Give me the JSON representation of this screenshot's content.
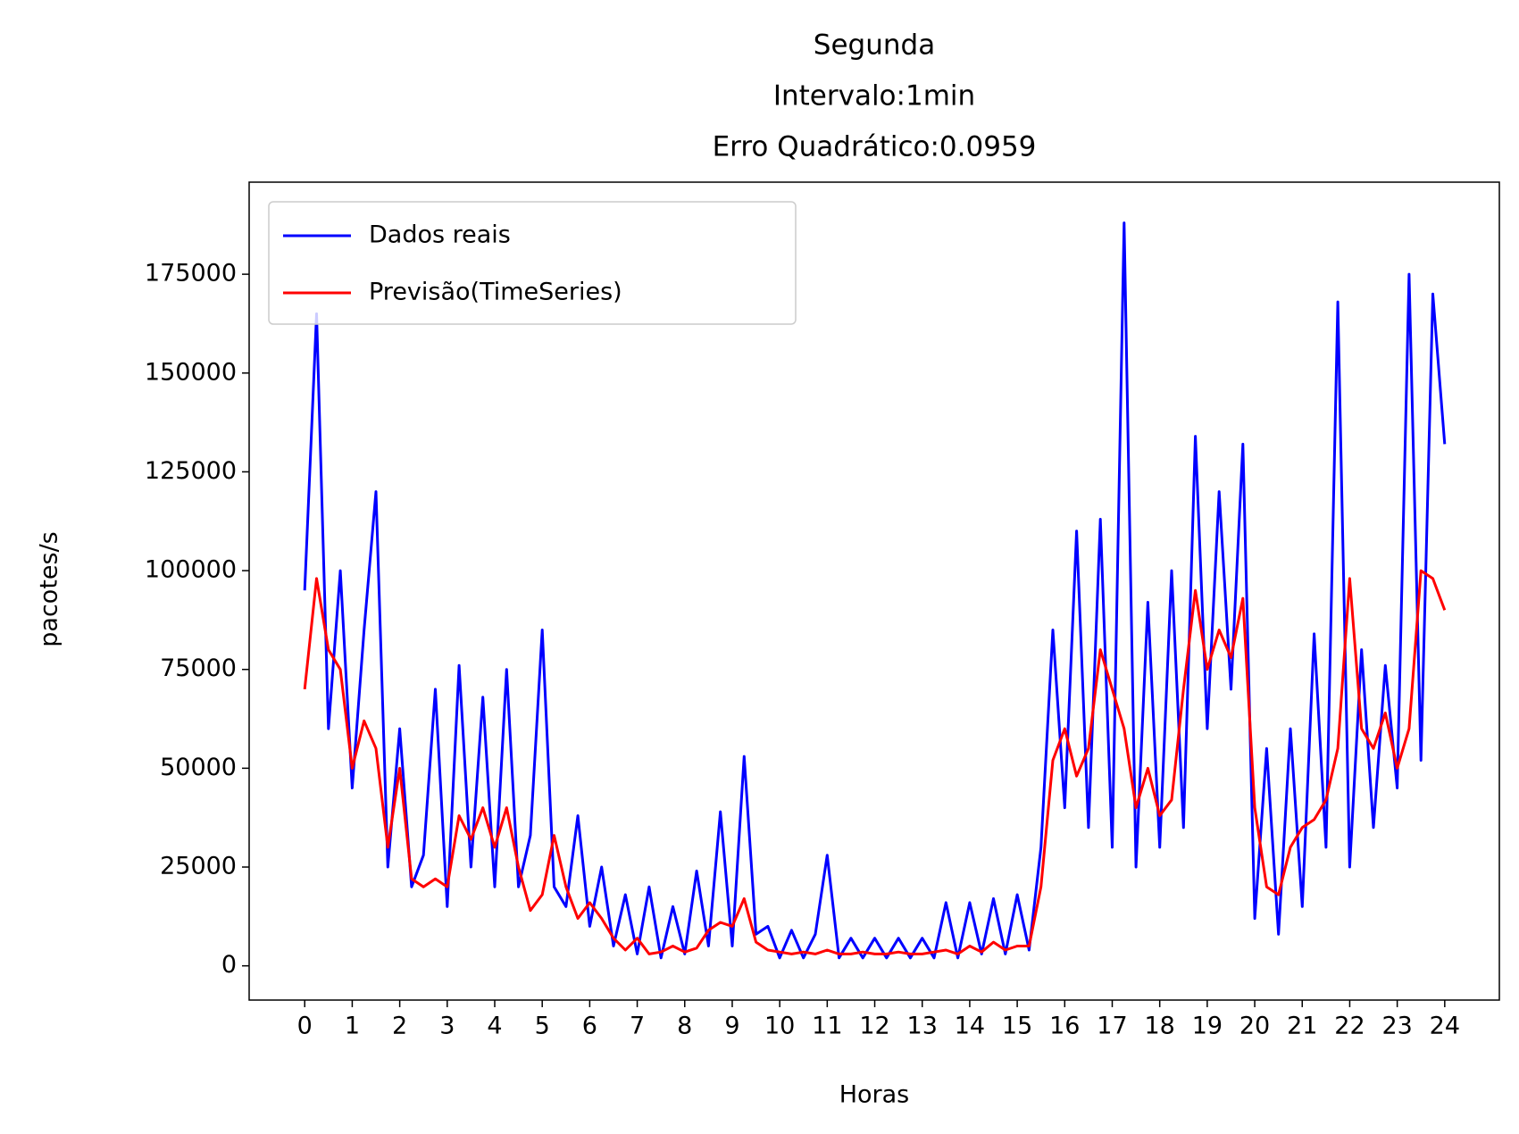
{
  "chart_data": {
    "type": "line",
    "title": [
      "Segunda",
      "Intervalo:1min",
      "Erro Quadrático:0.0959"
    ],
    "xlabel": "Horas",
    "ylabel": "pacotes/s",
    "x": [
      0,
      0.25,
      0.5,
      0.75,
      1,
      1.25,
      1.5,
      1.75,
      2,
      2.25,
      2.5,
      2.75,
      3,
      3.25,
      3.5,
      3.75,
      4,
      4.25,
      4.5,
      4.75,
      5,
      5.25,
      5.5,
      5.75,
      6,
      6.25,
      6.5,
      6.75,
      7,
      7.25,
      7.5,
      7.75,
      8,
      8.25,
      8.5,
      8.75,
      9,
      9.25,
      9.5,
      9.75,
      10,
      10.25,
      10.5,
      10.75,
      11,
      11.25,
      11.5,
      11.75,
      12,
      12.25,
      12.5,
      12.75,
      13,
      13.25,
      13.5,
      13.75,
      14,
      14.25,
      14.5,
      14.75,
      15,
      15.25,
      15.5,
      15.75,
      16,
      16.25,
      16.5,
      16.75,
      17,
      17.25,
      17.5,
      17.75,
      18,
      18.25,
      18.5,
      18.75,
      19,
      19.25,
      19.5,
      19.75,
      20,
      20.25,
      20.5,
      20.75,
      21,
      21.25,
      21.5,
      21.75,
      22,
      22.25,
      22.5,
      22.75,
      23,
      23.25,
      23.5,
      23.75,
      24
    ],
    "series": [
      {
        "name": "Dados reais",
        "color": "#0000ff",
        "values": [
          95000,
          165000,
          60000,
          100000,
          45000,
          85000,
          120000,
          25000,
          60000,
          20000,
          28000,
          70000,
          15000,
          76000,
          25000,
          68000,
          20000,
          75000,
          20000,
          33000,
          85000,
          20000,
          15000,
          38000,
          10000,
          25000,
          5000,
          18000,
          3000,
          20000,
          2000,
          15000,
          3000,
          24000,
          5000,
          39000,
          5000,
          53000,
          8000,
          10000,
          2000,
          9000,
          2000,
          8000,
          28000,
          2000,
          7000,
          2000,
          7000,
          2000,
          7000,
          2000,
          7000,
          2000,
          16000,
          2000,
          16000,
          3000,
          17000,
          3000,
          18000,
          4000,
          30000,
          85000,
          40000,
          110000,
          35000,
          113000,
          30000,
          188000,
          25000,
          92000,
          30000,
          100000,
          35000,
          134000,
          60000,
          120000,
          70000,
          132000,
          12000,
          55000,
          8000,
          60000,
          15000,
          84000,
          30000,
          168000,
          25000,
          80000,
          35000,
          76000,
          45000,
          175000,
          52000,
          170000,
          132000
        ]
      },
      {
        "name": "Previsão(TimeSeries)",
        "color": "#ff0000",
        "values": [
          70000,
          98000,
          80000,
          75000,
          50000,
          62000,
          55000,
          30000,
          50000,
          22000,
          20000,
          22000,
          20000,
          38000,
          32000,
          40000,
          30000,
          40000,
          25000,
          14000,
          18000,
          33000,
          20000,
          12000,
          16000,
          12000,
          7000,
          4000,
          7000,
          3000,
          3500,
          5000,
          3500,
          4500,
          9000,
          11000,
          10000,
          17000,
          6000,
          4000,
          3500,
          3000,
          3500,
          3000,
          4000,
          3000,
          3000,
          3500,
          3000,
          3000,
          3500,
          3000,
          3000,
          3500,
          4000,
          3000,
          5000,
          3500,
          6000,
          4000,
          5000,
          5000,
          20000,
          52000,
          60000,
          48000,
          55000,
          80000,
          70000,
          60000,
          40000,
          50000,
          38000,
          42000,
          70000,
          95000,
          75000,
          85000,
          78000,
          93000,
          40000,
          20000,
          18000,
          30000,
          35000,
          37000,
          42000,
          55000,
          98000,
          60000,
          55000,
          64000,
          50000,
          60000,
          100000,
          98000,
          90000
        ]
      }
    ],
    "xlim": [
      -1.17,
      25.15
    ],
    "ylim": [
      -8660,
      198300
    ],
    "xticks": [
      0,
      1,
      2,
      3,
      4,
      5,
      6,
      7,
      8,
      9,
      10,
      11,
      12,
      13,
      14,
      15,
      16,
      17,
      18,
      19,
      20,
      21,
      22,
      23,
      24
    ],
    "yticks": [
      0,
      25000,
      50000,
      75000,
      100000,
      125000,
      150000,
      175000
    ],
    "legend": "upper left"
  }
}
